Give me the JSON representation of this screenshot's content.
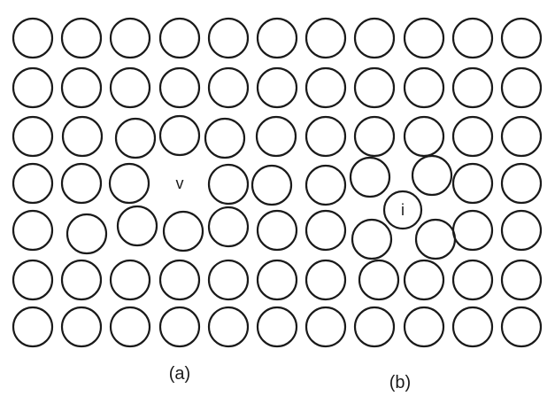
{
  "figure": {
    "defect_labels": {
      "vacancy": "v",
      "interstitial": "i"
    },
    "panel_labels": {
      "left": "(a)",
      "right": "(b)"
    },
    "lattice": {
      "rows": 7,
      "columns": 11
    },
    "stroke_color": "#1a1a1a",
    "background_color": "#ffffff"
  }
}
